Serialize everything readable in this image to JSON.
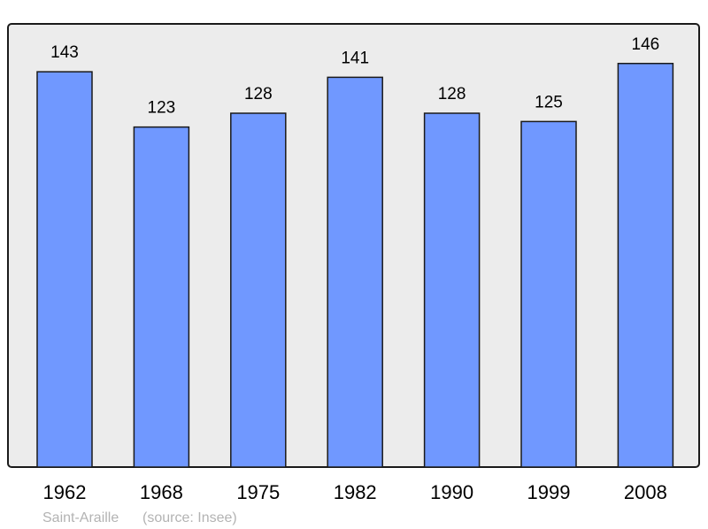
{
  "chart_data": {
    "type": "bar",
    "categories": [
      "1962",
      "1968",
      "1975",
      "1982",
      "1990",
      "1999",
      "2008"
    ],
    "values": [
      143,
      123,
      128,
      141,
      128,
      125,
      146
    ],
    "ylim": [
      0,
      160
    ],
    "grid": false,
    "bar_color": "#7098ff",
    "background_color": "#ececec",
    "place_name": "Saint-Araille",
    "source": "(source: Insee)"
  }
}
